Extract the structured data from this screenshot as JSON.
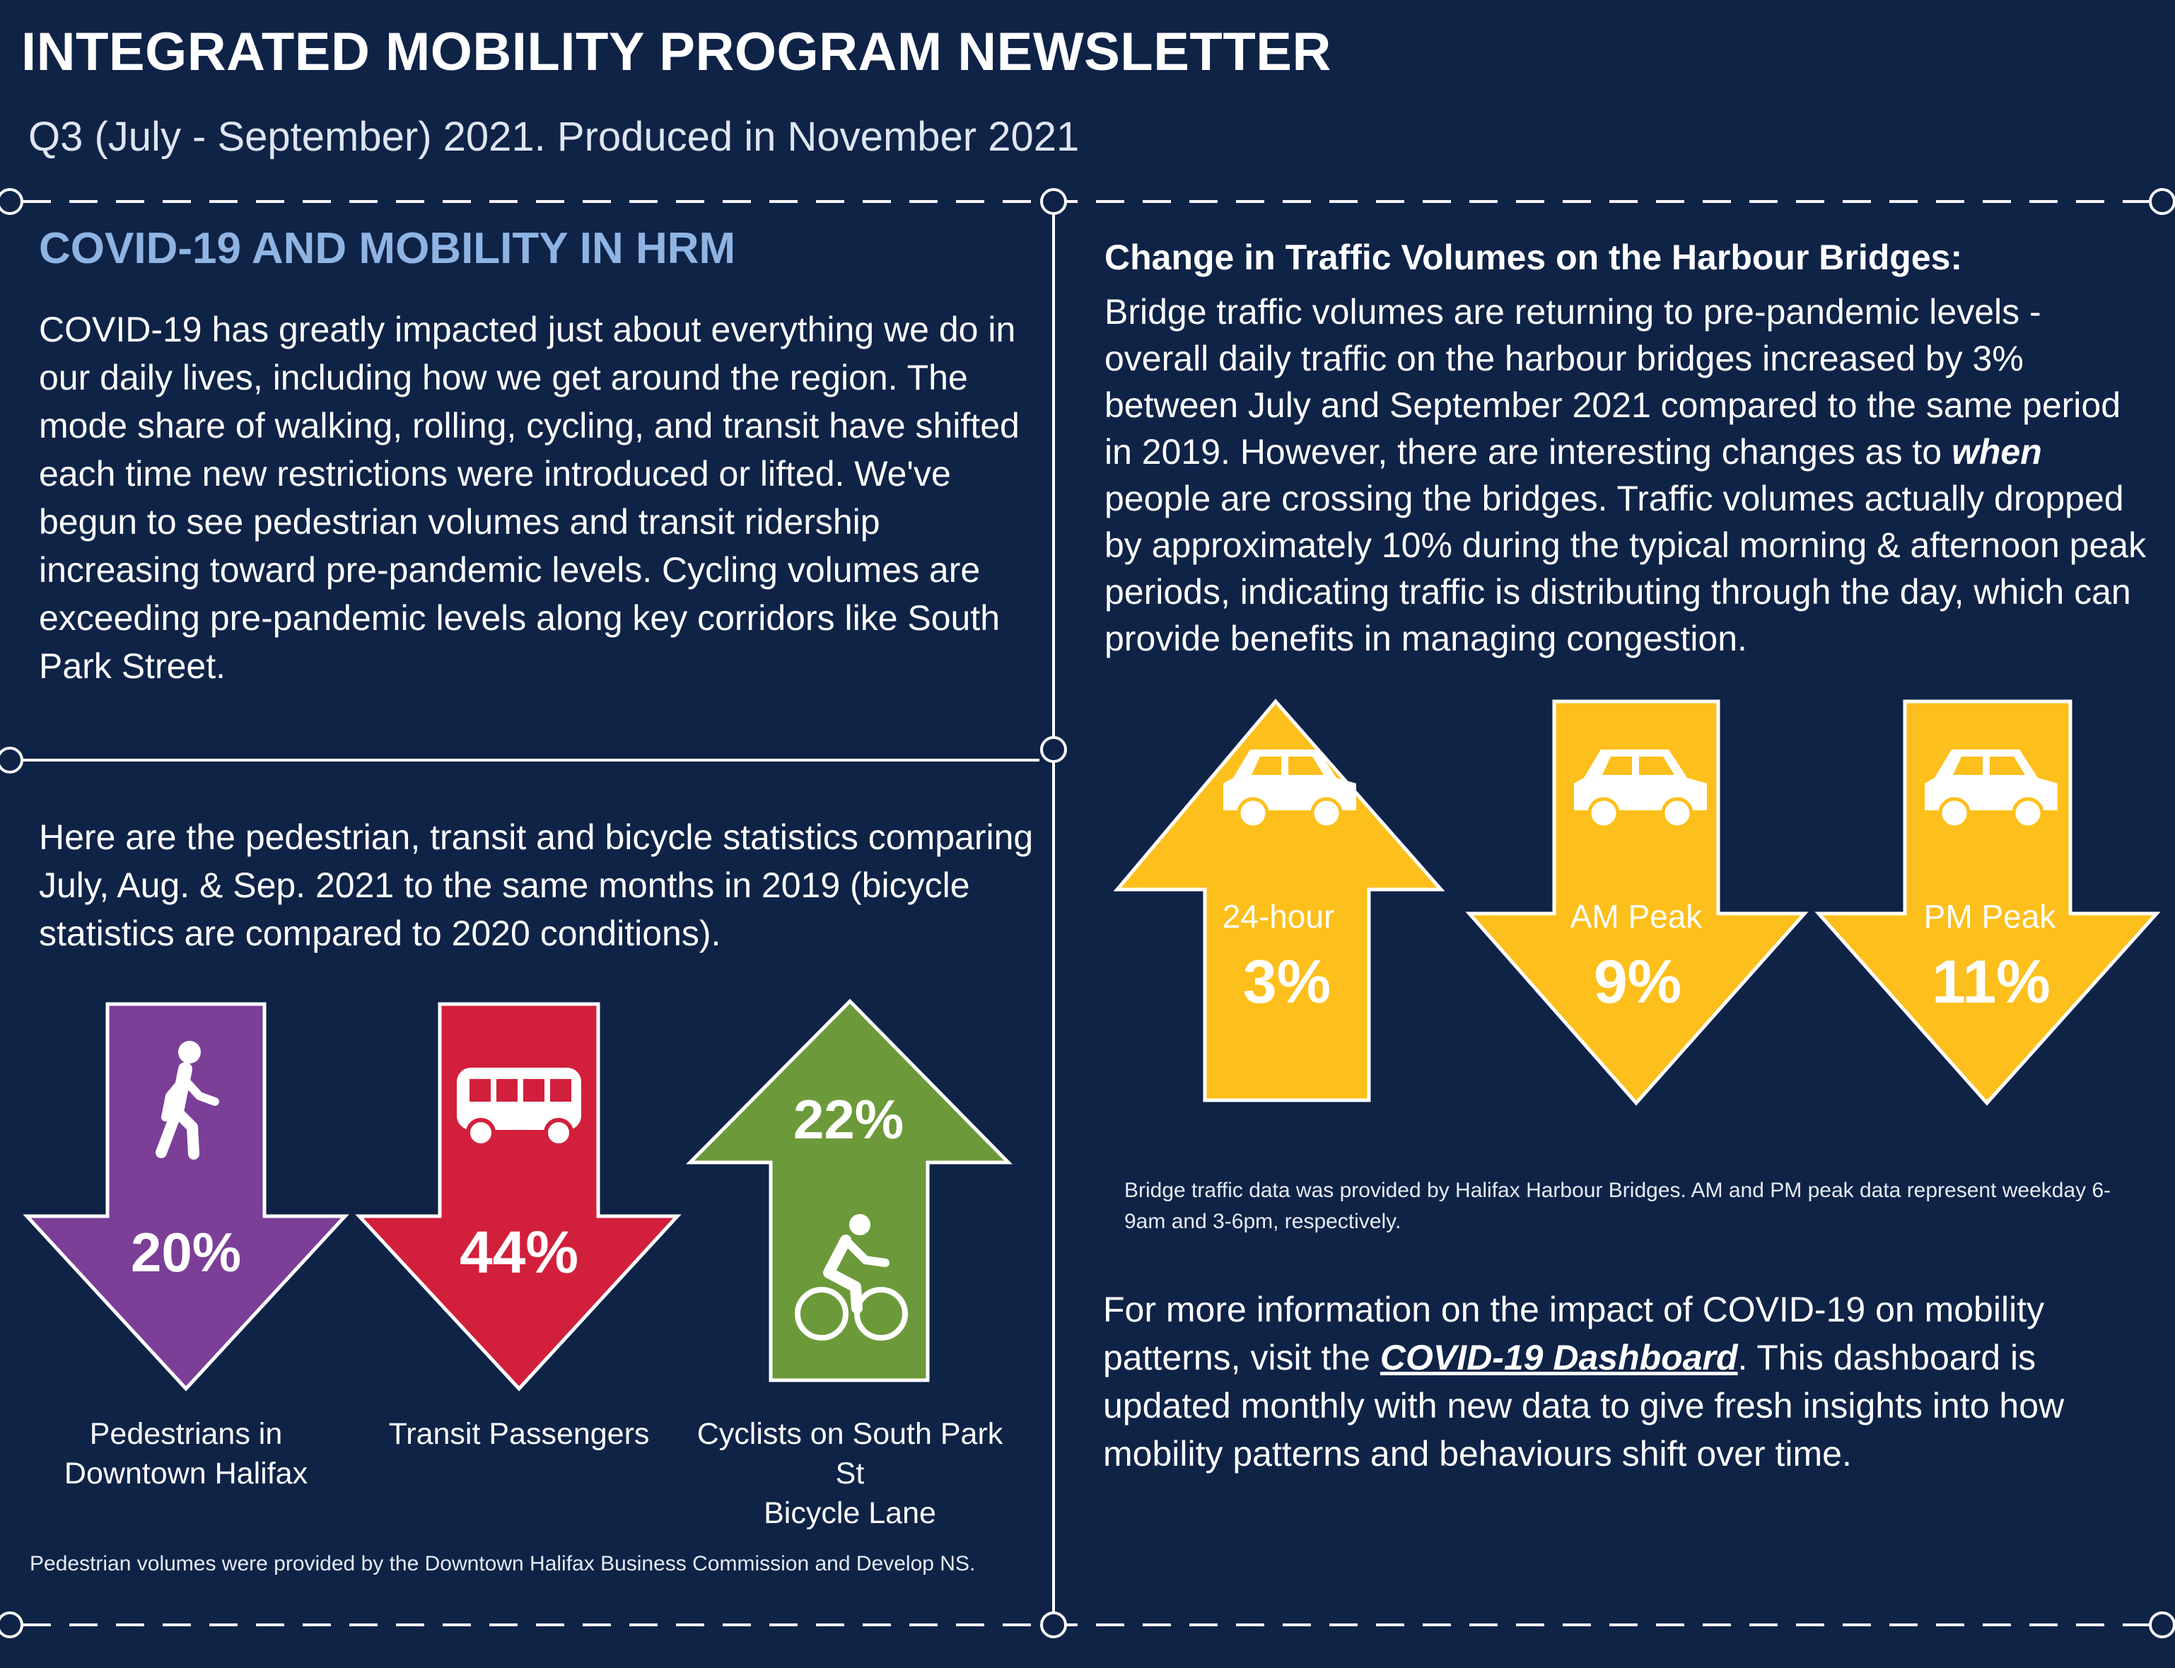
{
  "header": {
    "title": "INTEGRATED MOBILITY PROGRAM NEWSLETTER",
    "subtitle": "Q3 (July - September) 2021. Produced in November 2021"
  },
  "covid": {
    "heading": "COVID-19 AND MOBILITY IN HRM",
    "body": "COVID-19 has greatly impacted just about everything we do in our daily lives, including how we get around the region. The mode share of walking, rolling, cycling, and transit have shifted each time new restrictions were introduced or lifted. We've begun to see pedestrian volumes and transit ridership increasing toward pre-pandemic levels. Cycling volumes are exceeding pre-pandemic levels along key corridors like South Park Street."
  },
  "stats": {
    "intro": "Here are the pedestrian, transit and bicycle statistics comparing July, Aug. & Sep. 2021 to the same months in 2019 (bicycle statistics are compared to 2020 conditions).",
    "items": [
      {
        "value": "20%",
        "direction": "down",
        "color": "#7b3f98",
        "icon": "pedestrian-icon",
        "label_line1": "Pedestrians in",
        "label_line2": "Downtown Halifax"
      },
      {
        "value": "44%",
        "direction": "down",
        "color": "#d21f3c",
        "icon": "bus-icon",
        "label_line1": "Transit Passengers",
        "label_line2": ""
      },
      {
        "value": "22%",
        "direction": "up",
        "color": "#6c9a3a",
        "icon": "cyclist-icon",
        "label_line1": "Cyclists on South Park St",
        "label_line2": "Bicycle Lane"
      }
    ],
    "footnote": "Pedestrian volumes were provided by the Downtown Halifax Business Commission and Develop NS."
  },
  "bridges": {
    "heading": "Change in Traffic Volumes on the Harbour Bridges:",
    "body_part1": "Bridge traffic volumes are returning to pre-pandemic levels - overall daily traffic on the harbour bridges increased by 3% between July and September 2021 compared to the same period in 2019.  However, there are interesting changes as to ",
    "body_emphasis": "when",
    "body_part2": " people are crossing the bridges. Traffic volumes actually dropped by approximately 10% during the typical morning & afternoon peak periods, indicating traffic is distributing through the day, which can provide benefits in managing congestion.",
    "arrow_color": "#fdbf1b",
    "items": [
      {
        "label": "24-hour",
        "value": "3%",
        "direction": "up",
        "icon": "car-icon"
      },
      {
        "label": "AM Peak",
        "value": "9%",
        "direction": "down",
        "icon": "car-icon"
      },
      {
        "label": "PM Peak",
        "value": "11%",
        "direction": "down",
        "icon": "car-icon"
      }
    ],
    "footnote": "Bridge traffic data was provided by Halifax Harbour Bridges. AM and PM peak data represent weekday 6-9am and 3-6pm, respectively."
  },
  "more_info": {
    "part1": "For more information on the impact of COVID-19 on mobility patterns, visit the ",
    "link": "COVID-19 Dashboard",
    "part2": ". This dashboard is updated monthly with new data to give fresh insights into how mobility patterns and behaviours shift over time."
  },
  "colors": {
    "background": "#0f2347",
    "heading_blue": "#8fb4e3",
    "divider": "#ffffff"
  }
}
